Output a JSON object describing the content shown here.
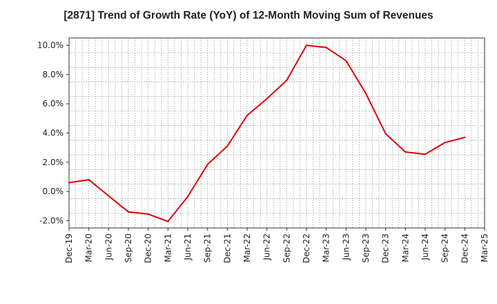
{
  "chart_data": {
    "type": "line",
    "title": "[2871]  Trend of Growth Rate (YoY) of 12-Month Moving Sum of Revenues",
    "xlabel": "",
    "ylabel": "",
    "x_ticks": [
      "Dec-19",
      "Mar-20",
      "Jun-20",
      "Sep-20",
      "Dec-20",
      "Mar-21",
      "Jun-21",
      "Sep-21",
      "Dec-21",
      "Mar-22",
      "Jun-22",
      "Sep-22",
      "Dec-22",
      "Mar-23",
      "Jun-23",
      "Sep-23",
      "Dec-23",
      "Mar-24",
      "Jun-24",
      "Sep-24",
      "Dec-24",
      "Mar-25"
    ],
    "y_ticks": [
      "-2.0%",
      "0.0%",
      "2.0%",
      "4.0%",
      "6.0%",
      "8.0%",
      "10.0%"
    ],
    "y_tick_values": [
      -2,
      0,
      2,
      4,
      6,
      8,
      10
    ],
    "ylim": [
      -2.5,
      10.5
    ],
    "grid": true,
    "series": [
      {
        "color": "#e00000",
        "x": [
          "Dec-19",
          "Mar-20",
          "Jun-20",
          "Sep-20",
          "Dec-20",
          "Mar-21",
          "Jun-21",
          "Sep-21",
          "Dec-21",
          "Mar-22",
          "Jun-22",
          "Sep-22",
          "Dec-22",
          "Mar-23",
          "Jun-23",
          "Sep-23",
          "Dec-23",
          "Mar-24",
          "Jun-24",
          "Sep-24",
          "Dec-24"
        ],
        "values": [
          0.6,
          0.8,
          -0.3,
          -1.4,
          -1.55,
          -2.05,
          -0.35,
          1.85,
          3.1,
          5.2,
          6.35,
          7.6,
          10.0,
          9.85,
          8.95,
          6.7,
          3.95,
          2.7,
          2.55,
          3.35,
          3.7
        ]
      }
    ]
  }
}
